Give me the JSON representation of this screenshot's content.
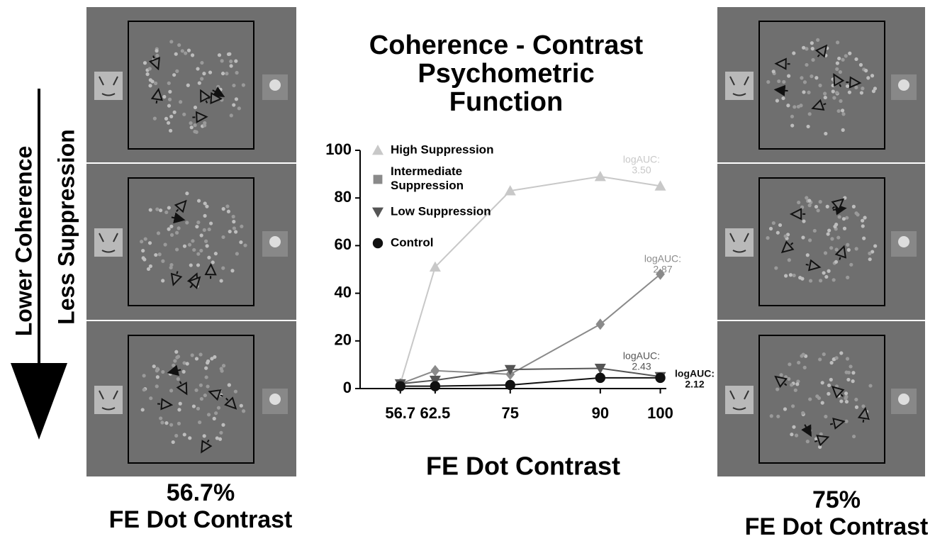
{
  "chart_data": {
    "type": "line",
    "title": [
      "Coherence - Contrast",
      "Psychometric",
      "Function"
    ],
    "x_label": "FE Dot Contrast",
    "x": [
      56.7,
      62.5,
      75,
      90,
      100
    ],
    "xlim": [
      50,
      101
    ],
    "xticks": [
      56.7,
      62.5,
      75,
      90,
      100
    ],
    "ylim": [
      0,
      100
    ],
    "yticks": [
      0,
      20,
      40,
      60,
      80,
      100
    ],
    "series": [
      {
        "name": "High Suppression",
        "color": "#c8c8c8",
        "marker": "triangle-up",
        "values": [
          2,
          51,
          83,
          89,
          85
        ]
      },
      {
        "name": "Intermediate Suppression",
        "color": "#8a8a8a",
        "marker": "diamond",
        "values": [
          2,
          7.5,
          6,
          27,
          48
        ]
      },
      {
        "name": "Low Suppression",
        "color": "#555555",
        "marker": "triangle-down",
        "values": [
          2,
          3.5,
          8,
          8.5,
          5
        ]
      },
      {
        "name": "Control",
        "color": "#111111",
        "marker": "circle",
        "values": [
          1,
          1,
          1.5,
          4.5,
          4.5
        ]
      }
    ],
    "annotations": [
      [
        "logAUC:",
        "3.50"
      ],
      [
        "logAUC:",
        "2.87"
      ],
      [
        "logAUC:",
        "2.43"
      ],
      [
        "logAUC:",
        "2.12"
      ]
    ]
  },
  "left_panel": {
    "caption": [
      "56.7%",
      "FE Dot Contrast"
    ]
  },
  "right_panel": {
    "caption": [
      "75%",
      "FE Dot Contrast"
    ]
  },
  "arrow_labels": [
    "Lower Coherence",
    "Less Suppression"
  ]
}
